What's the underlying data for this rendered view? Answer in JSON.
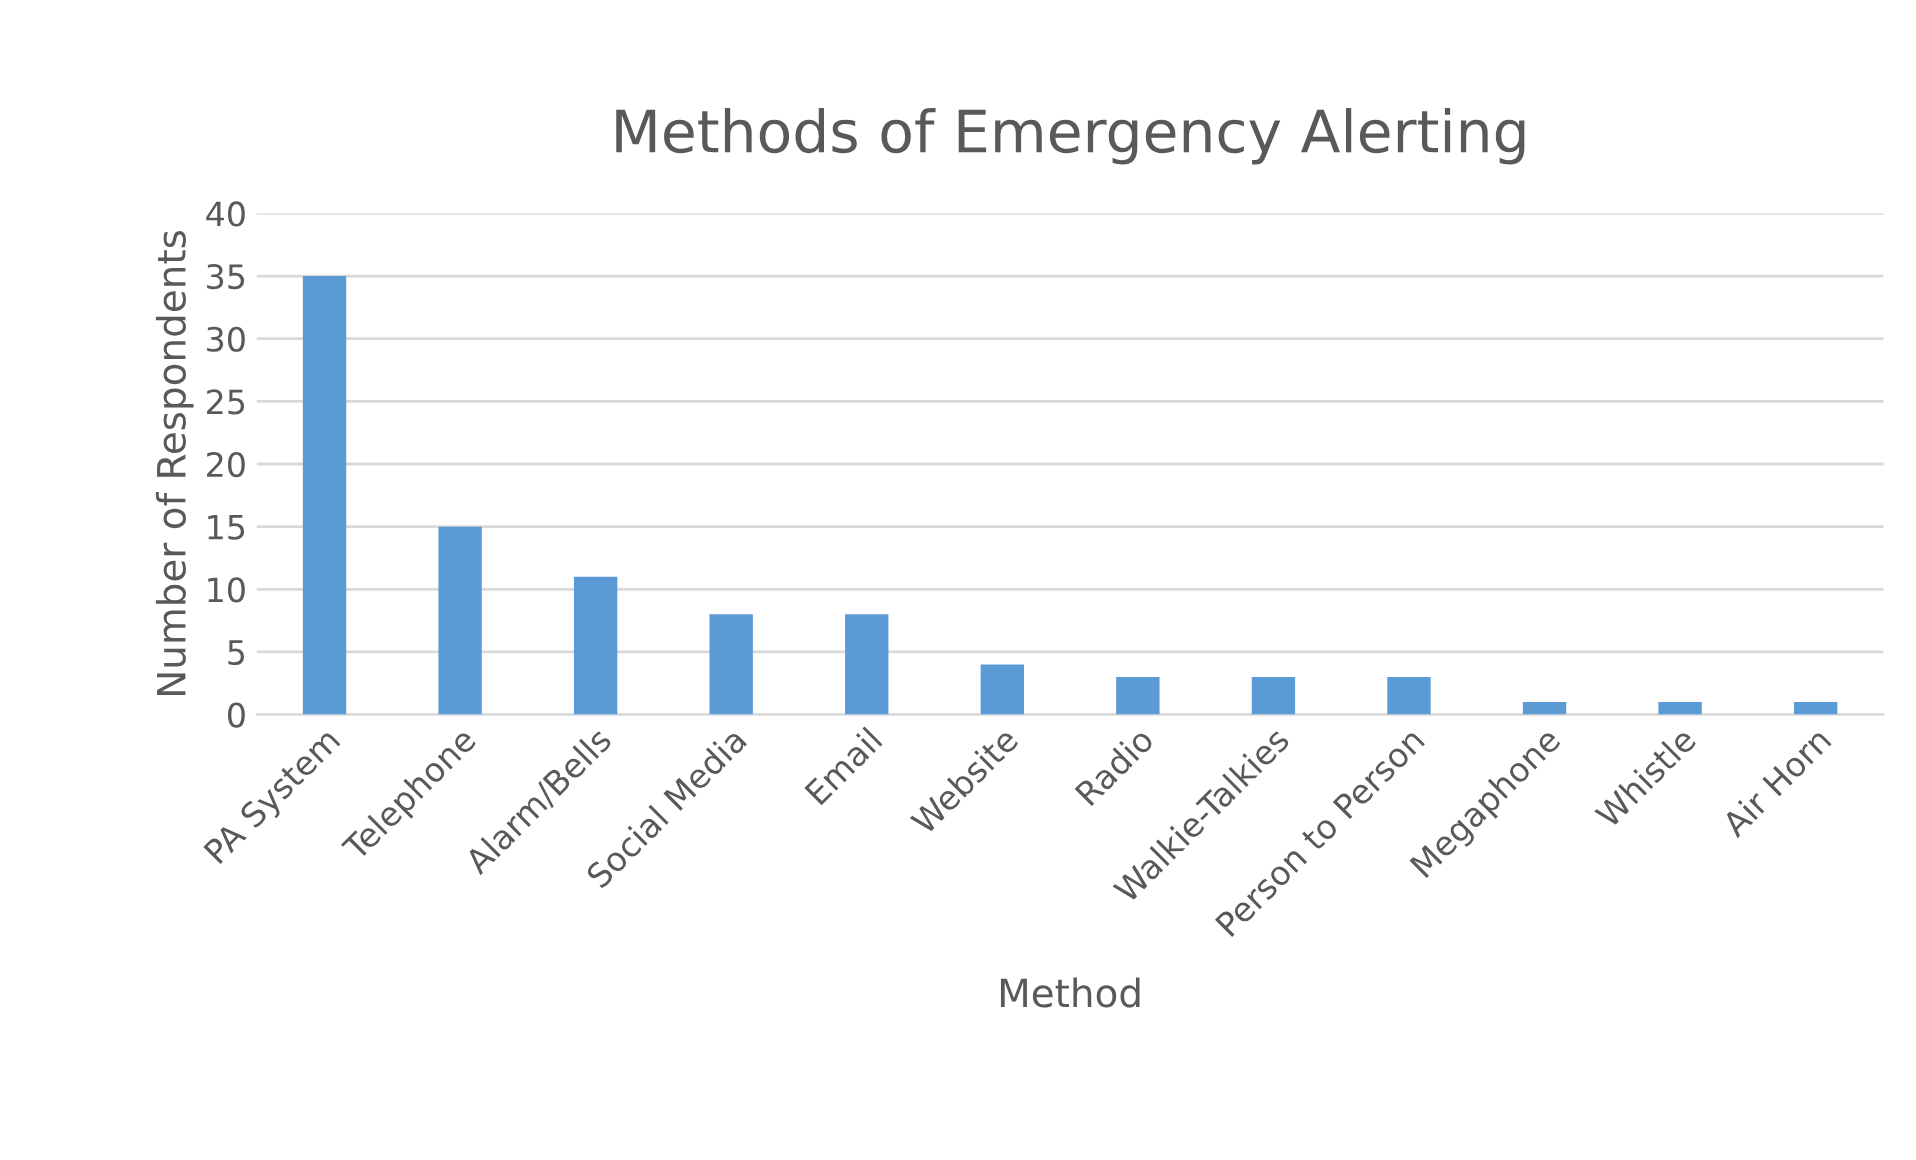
{
  "chart_data": {
    "type": "bar",
    "title": "Methods of Emergency Alerting",
    "xlabel": "Method",
    "ylabel": "Number of Respondents",
    "categories": [
      "PA System",
      "Telephone",
      "Alarm/Bells",
      "Social Media",
      "Email",
      "Website",
      "Radio",
      "Walkie-Talkies",
      "Person to Person",
      "Megaphone",
      "Whistle",
      "Air Horn"
    ],
    "values": [
      35,
      15,
      11,
      8,
      8,
      4,
      3,
      3,
      3,
      1,
      1,
      1
    ],
    "color": "#5b9bd5",
    "ylim": [
      0,
      40
    ],
    "yticks": [
      0,
      5,
      10,
      15,
      20,
      25,
      30,
      35,
      40
    ],
    "grid": "y",
    "legend": false
  }
}
